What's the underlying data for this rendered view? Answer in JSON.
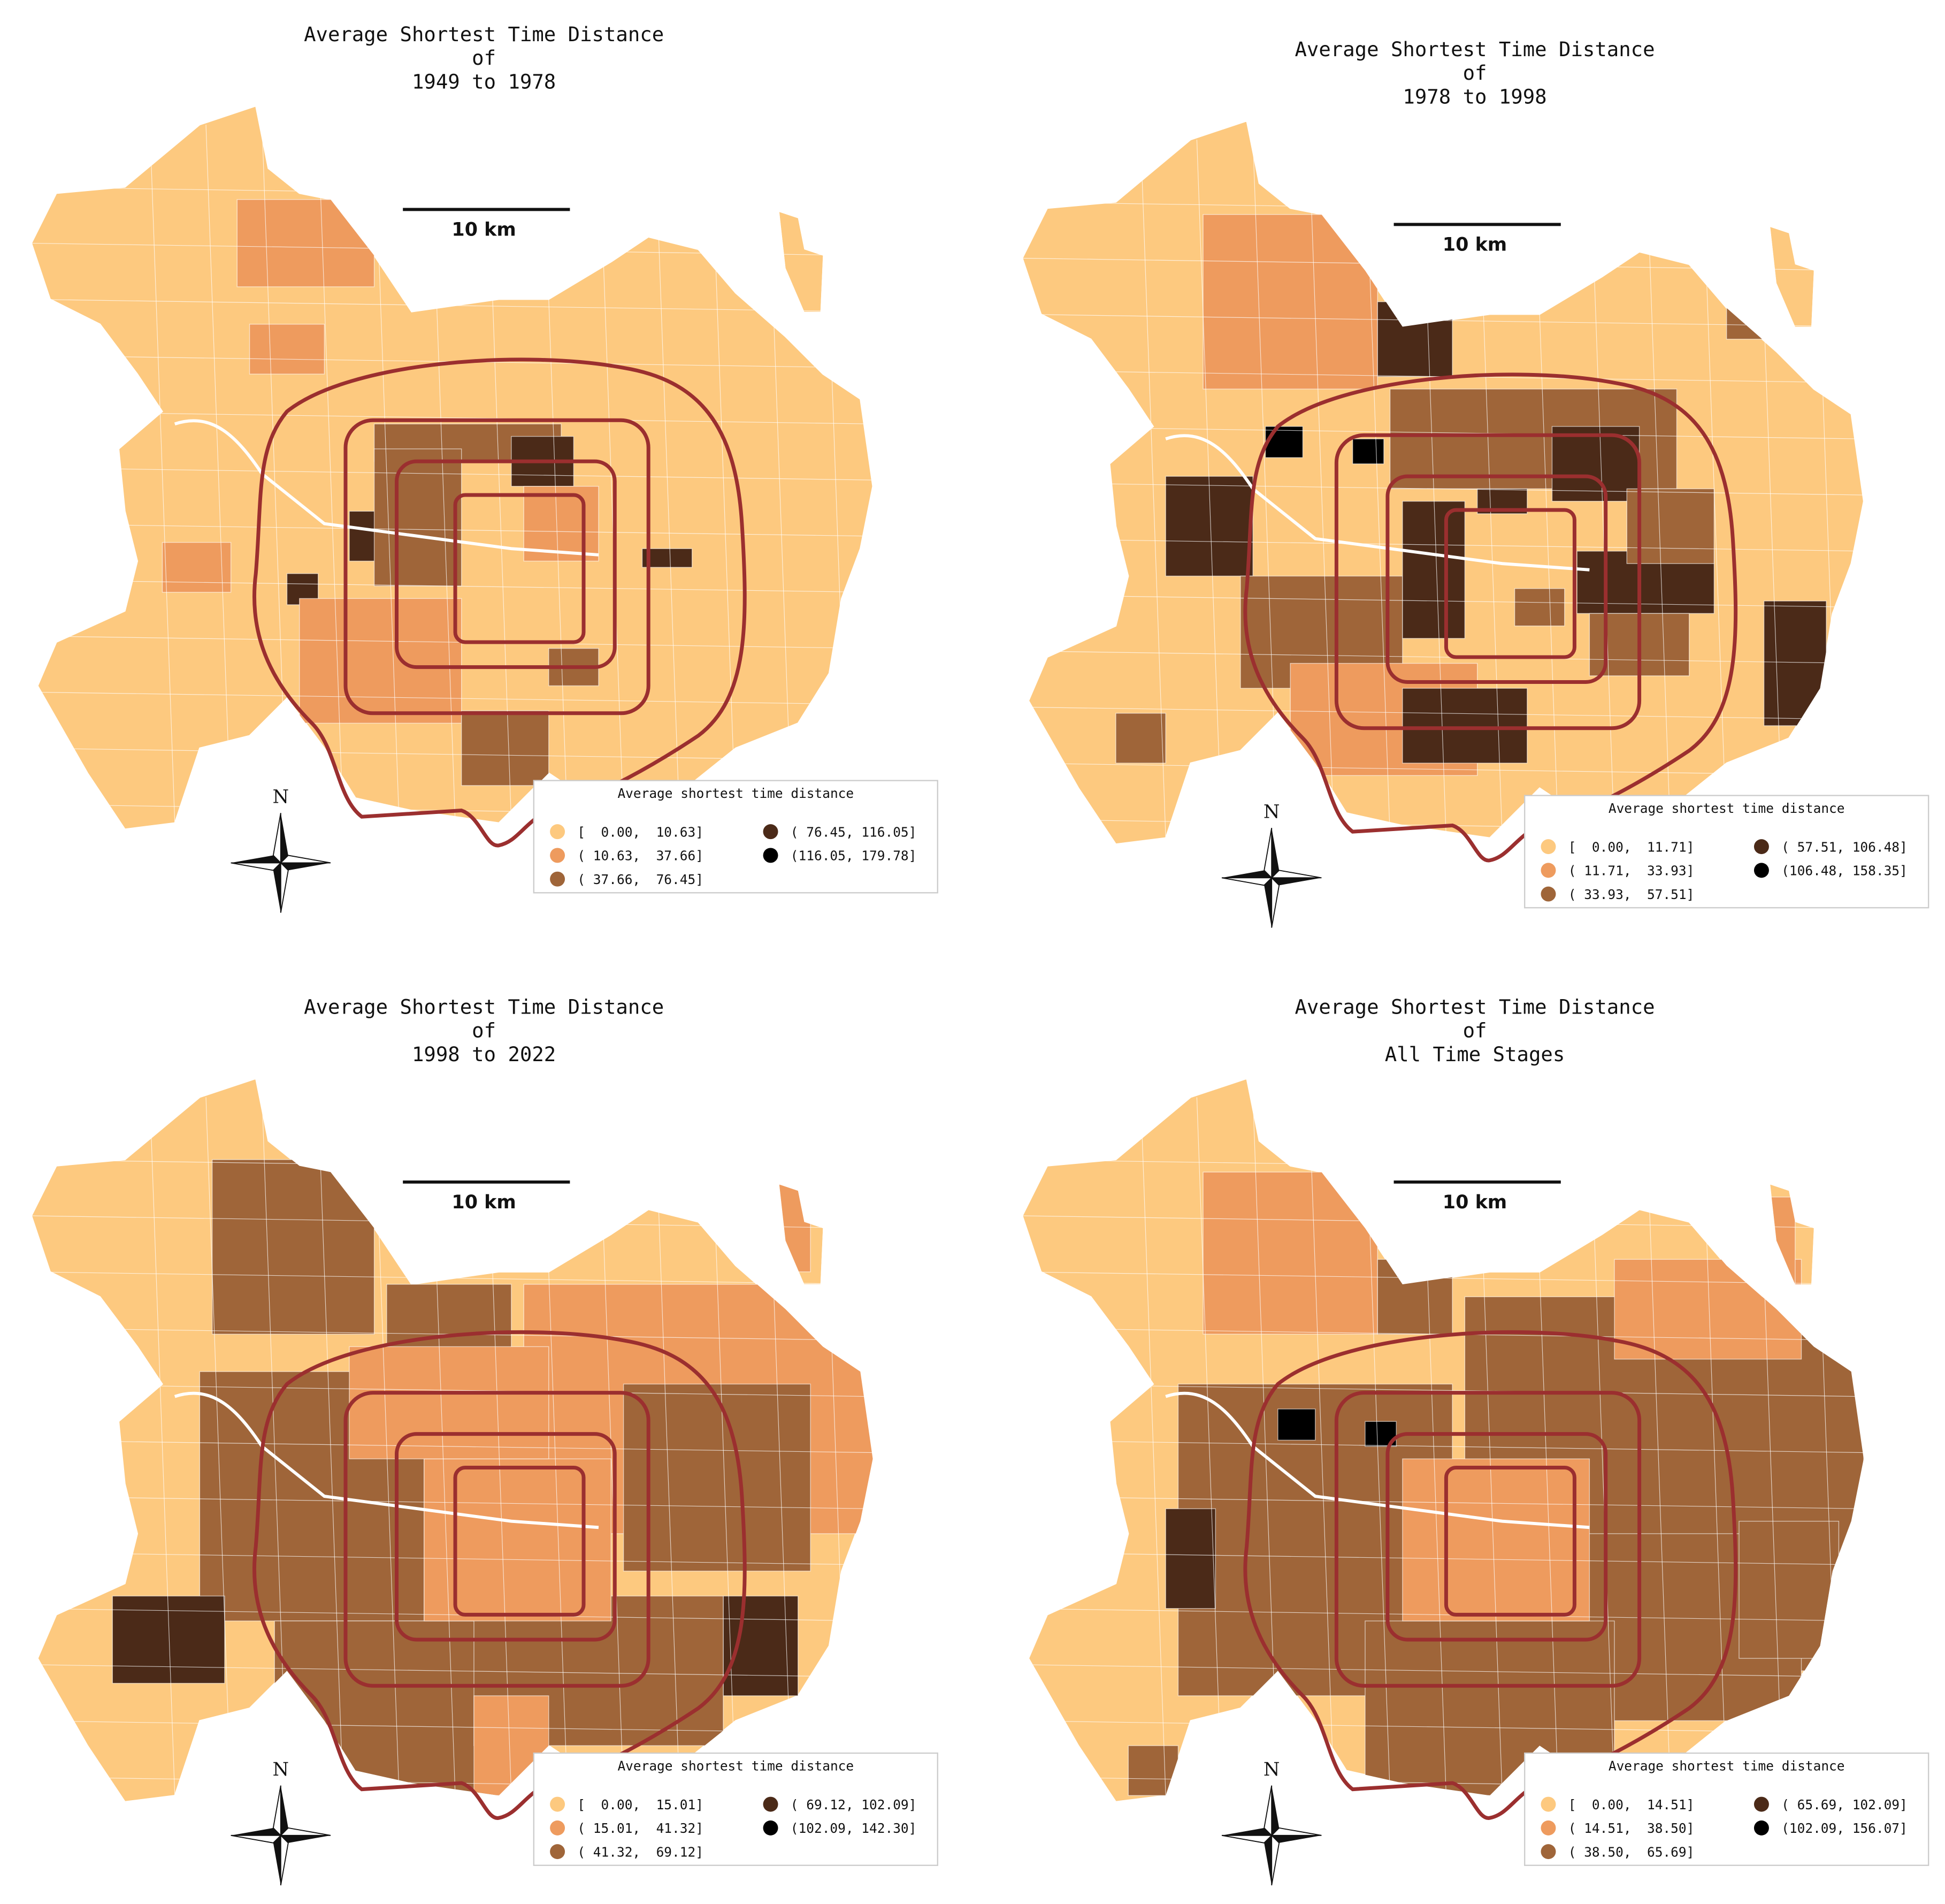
{
  "panels": [
    {
      "title": [
        "Average Shortest Time Distance",
        "of",
        "1949 to 1978"
      ],
      "scale_bar": "10 km",
      "north": "N",
      "legend": {
        "title": "Average shortest time distance",
        "entries": [
          {
            "label": "[  0.00,  10.63]",
            "color": "#fdc97f"
          },
          {
            "label": "( 10.63,  37.66]",
            "color": "#ee9b5e"
          },
          {
            "label": "( 37.66,  76.45]",
            "color": "#9f6539"
          },
          {
            "label": "( 76.45, 116.05]",
            "color": "#4b2a18"
          },
          {
            "label": "(116.05, 179.78]",
            "color": "#000000"
          }
        ]
      }
    },
    {
      "title": [
        "Average Shortest Time Distance",
        "of",
        "1978 to 1998"
      ],
      "scale_bar": "10 km",
      "north": "N",
      "legend": {
        "title": "Average shortest time distance",
        "entries": [
          {
            "label": "[  0.00,  11.71]",
            "color": "#fdc97f"
          },
          {
            "label": "( 11.71,  33.93]",
            "color": "#ee9b5e"
          },
          {
            "label": "( 33.93,  57.51]",
            "color": "#9f6539"
          },
          {
            "label": "( 57.51, 106.48]",
            "color": "#4b2a18"
          },
          {
            "label": "(106.48, 158.35]",
            "color": "#000000"
          }
        ]
      }
    },
    {
      "title": [
        "Average Shortest Time Distance",
        "of",
        "1998 to 2022"
      ],
      "scale_bar": "10 km",
      "north": "N",
      "legend": {
        "title": "Average shortest time distance",
        "entries": [
          {
            "label": "[  0.00,  15.01]",
            "color": "#fdc97f"
          },
          {
            "label": "( 15.01,  41.32]",
            "color": "#ee9b5e"
          },
          {
            "label": "( 41.32,  69.12]",
            "color": "#9f6539"
          },
          {
            "label": "( 69.12, 102.09]",
            "color": "#4b2a18"
          },
          {
            "label": "(102.09, 142.30]",
            "color": "#000000"
          }
        ]
      }
    },
    {
      "title": [
        "Average Shortest Time Distance",
        "of",
        "All Time Stages"
      ],
      "scale_bar": "10 km",
      "north": "N",
      "legend": {
        "title": "Average shortest time distance",
        "entries": [
          {
            "label": "[  0.00,  14.51]",
            "color": "#fdc97f"
          },
          {
            "label": "( 14.51,  38.50]",
            "color": "#ee9b5e"
          },
          {
            "label": "( 38.50,  65.69]",
            "color": "#9f6539"
          },
          {
            "label": "( 65.69, 102.09]",
            "color": "#4b2a18"
          },
          {
            "label": "(102.09, 156.07]",
            "color": "#000000"
          }
        ]
      }
    }
  ]
}
